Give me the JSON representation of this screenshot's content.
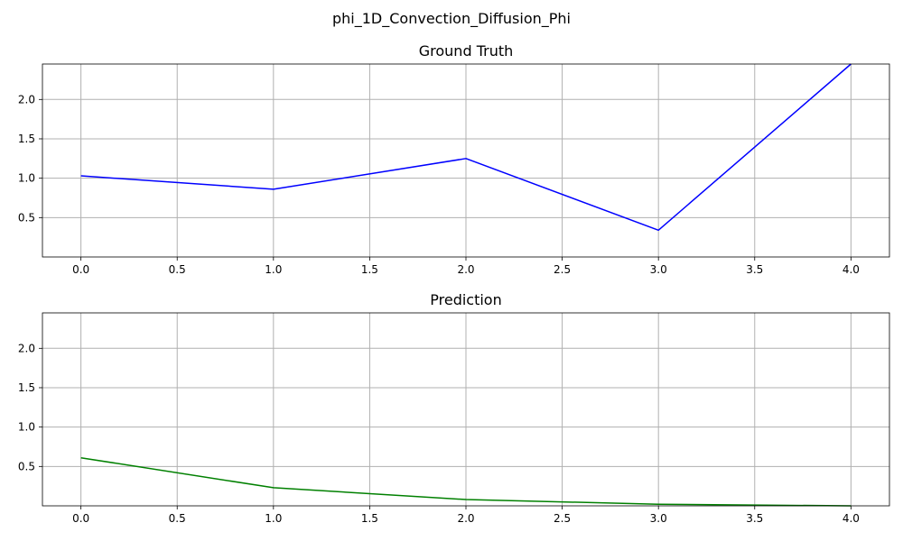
{
  "figure": {
    "suptitle": "phi_1D_Convection_Diffusion_Phi"
  },
  "chart_data": [
    {
      "type": "line",
      "title": "Ground Truth",
      "xlabel": "",
      "ylabel": "",
      "xlim": [
        -0.2,
        4.2
      ],
      "ylim": [
        0.0,
        2.45
      ],
      "xticks": [
        "0.0",
        "0.5",
        "1.0",
        "1.5",
        "2.0",
        "2.5",
        "3.0",
        "3.5",
        "4.0"
      ],
      "yticks": [
        "0.5",
        "1.0",
        "1.5",
        "2.0"
      ],
      "grid": true,
      "series": [
        {
          "color": "#0000ff",
          "x": [
            0,
            1,
            2,
            3,
            4
          ],
          "y": [
            1.03,
            0.86,
            1.25,
            0.34,
            2.45
          ]
        }
      ]
    },
    {
      "type": "line",
      "title": "Prediction",
      "xlabel": "",
      "ylabel": "",
      "xlim": [
        -0.2,
        4.2
      ],
      "ylim": [
        0.0,
        2.45
      ],
      "xticks": [
        "0.0",
        "0.5",
        "1.0",
        "1.5",
        "2.0",
        "2.5",
        "3.0",
        "3.5",
        "4.0"
      ],
      "yticks": [
        "0.5",
        "1.0",
        "1.5",
        "2.0"
      ],
      "grid": true,
      "series": [
        {
          "color": "#008000",
          "x": [
            0,
            1,
            2,
            3,
            4
          ],
          "y": [
            0.61,
            0.23,
            0.08,
            0.02,
            0.0
          ]
        }
      ]
    }
  ]
}
